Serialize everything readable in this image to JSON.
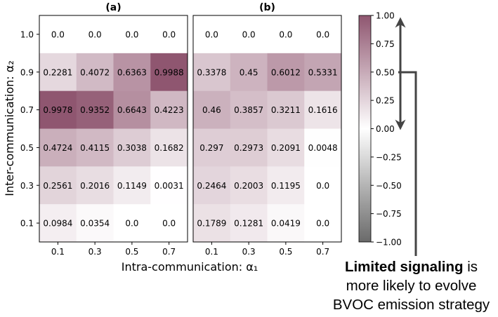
{
  "chart_data": [
    {
      "type": "heatmap",
      "title": "(a)",
      "x": [
        "0.1",
        "0.3",
        "0.5",
        "0.7"
      ],
      "y": [
        "1.0",
        "0.9",
        "0.7",
        "0.5",
        "0.3",
        "0.1"
      ],
      "values": [
        [
          "0.0",
          "0.0",
          "0.0",
          "0.0"
        ],
        [
          "0.2281",
          "0.4072",
          "0.6363",
          "0.9988"
        ],
        [
          "0.9978",
          "0.9352",
          "0.6643",
          "0.4223"
        ],
        [
          "0.4724",
          "0.4115",
          "0.3038",
          "0.1682"
        ],
        [
          "0.2561",
          "0.2016",
          "0.1149",
          "0.0031"
        ],
        [
          "0.0984",
          "0.0354",
          "0.0",
          "0.0"
        ]
      ],
      "xlabel": "Intra-communication: α₁",
      "ylabel": "Inter-communication: α₂"
    },
    {
      "type": "heatmap",
      "title": "(b)",
      "x": [
        "0.1",
        "0.3",
        "0.5",
        "0.7"
      ],
      "y": [
        "1.0",
        "0.9",
        "0.7",
        "0.5",
        "0.3",
        "0.1"
      ],
      "values": [
        [
          "0.0",
          "0.0",
          "0.0",
          "0.0"
        ],
        [
          "0.3378",
          "0.45",
          "0.6012",
          "0.5331"
        ],
        [
          "0.46",
          "0.3857",
          "0.3211",
          "0.1616"
        ],
        [
          "0.297",
          "0.2973",
          "0.2091",
          "0.0048"
        ],
        [
          "0.2464",
          "0.2003",
          "0.1195",
          "0.0"
        ],
        [
          "0.1789",
          "0.1281",
          "0.0419",
          "0.0"
        ]
      ],
      "xlabel": "",
      "ylabel": ""
    }
  ],
  "colorbar": {
    "ticks": [
      "1.00",
      "0.75",
      "0.50",
      "0.25",
      "0.00",
      "−0.25",
      "−0.50",
      "−0.75",
      "−1.00"
    ],
    "range": [
      -1,
      1
    ],
    "colors": {
      "positive": "#8f5670",
      "negative": "#6a6a6a",
      "zero": "#ffffff"
    }
  },
  "annotation": {
    "bold_part": "Limited signaling",
    "rest_line1": " is",
    "line2": "more likely to evolve",
    "line3": "BVOC emission strategy"
  }
}
